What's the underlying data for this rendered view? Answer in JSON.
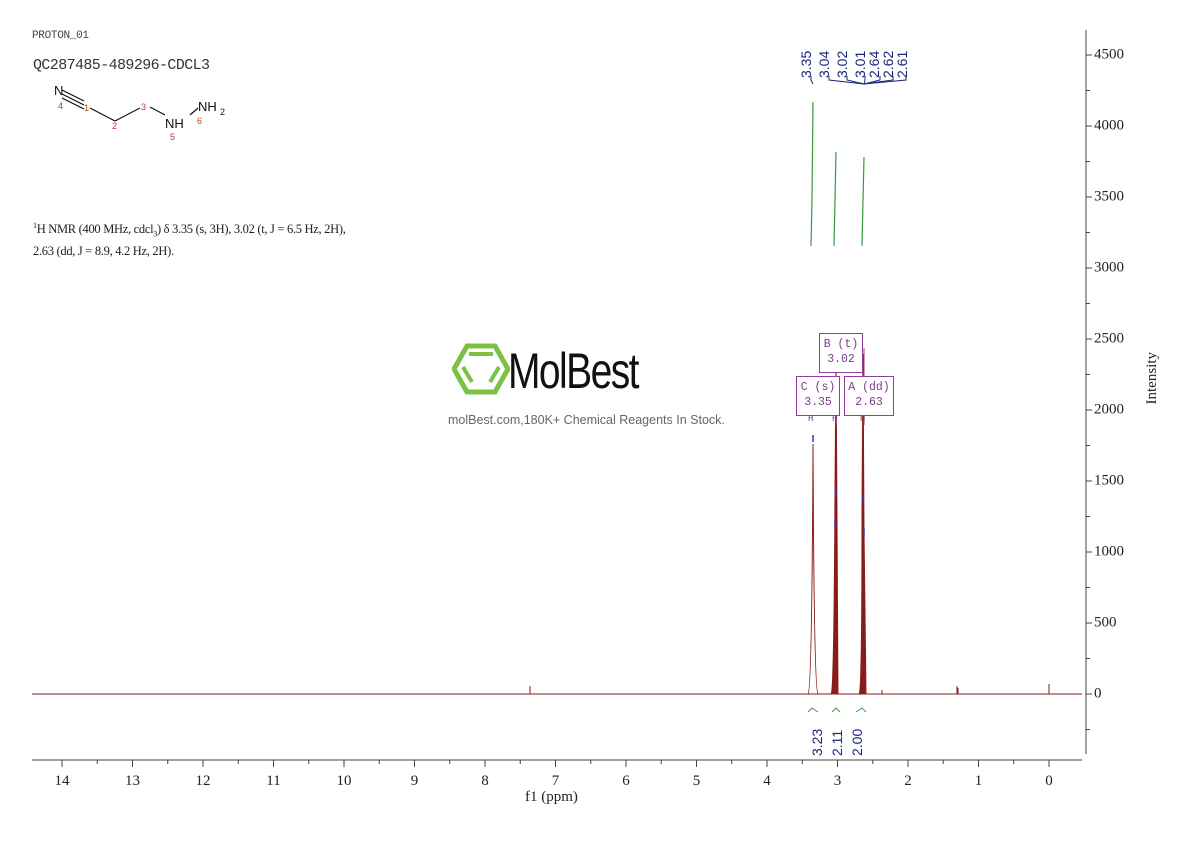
{
  "header": {
    "experiment": "PROTON_01",
    "sample_id": "QC287485-489296-CDCL3"
  },
  "structure": {
    "atoms": [
      {
        "label": "N",
        "index": "4"
      },
      {
        "label": "",
        "index": "1"
      },
      {
        "label": "",
        "index": "2"
      },
      {
        "label": "",
        "index": "3"
      },
      {
        "label": "NH",
        "index": "5"
      },
      {
        "label": "NH2",
        "index": "6"
      }
    ]
  },
  "nmr_description": {
    "line1_prefix": "1",
    "line1": "H NMR (400 MHz, cdcl",
    "line1_sub": "3",
    "line1_rest": ") δ 3.35 (s, 3H), 3.02 (t, J = 6.5 Hz, 2H),",
    "line2": "2.63 (dd, J = 8.9, 4.2 Hz, 2H)."
  },
  "watermark": {
    "brand": "MolBest",
    "tagline": "molBest.com,180K+ Chemical Reagents In Stock.",
    "logo_color": "#7cc242"
  },
  "colors": {
    "spectrum": "#8b1a1a",
    "integral_curve": "#3a9a3a",
    "peak_labels": "#1a237e",
    "multiplet_box": "#8e3f9a",
    "axis": "#444444"
  },
  "chart_data": {
    "type": "line",
    "title": "QC287485-489296-CDCL3",
    "subtitle": "PROTON_01",
    "xlabel": "f1 (ppm)",
    "ylabel": "Intensity",
    "xlim": [
      14.45,
      -0.45
    ],
    "ylim": [
      -450,
      4650
    ],
    "x_reversed": true,
    "y_axis_position": "right",
    "grid": false,
    "x_ticks": [
      "14",
      "13",
      "12",
      "11",
      "10",
      "9",
      "8",
      "7",
      "6",
      "5",
      "4",
      "3",
      "2",
      "1",
      "0"
    ],
    "y_ticks": [
      "0",
      "500",
      "1000",
      "1500",
      "2000",
      "2500",
      "3000",
      "3500",
      "4000",
      "4500"
    ],
    "peaks": [
      {
        "ppm": 3.35,
        "intensity": 1770
      },
      {
        "ppm": 3.04,
        "intensity": 1430
      },
      {
        "ppm": 3.02,
        "intensity": 2300
      },
      {
        "ppm": 3.01,
        "intensity": 1200
      },
      {
        "ppm": 2.64,
        "intensity": 1380
      },
      {
        "ppm": 2.62,
        "intensity": 2330
      },
      {
        "ppm": 2.61,
        "intensity": 1160
      },
      {
        "ppm": 7.26,
        "intensity": 60
      },
      {
        "ppm": 2.4,
        "intensity": 25
      },
      {
        "ppm": 1.33,
        "intensity": 60
      },
      {
        "ppm": 0.0,
        "intensity": 60
      }
    ],
    "peak_labels": [
      "3.35",
      "3.04",
      "3.02",
      "3.01",
      "2.64",
      "2.62",
      "2.61"
    ],
    "multiplets": [
      {
        "id": "B",
        "type": "(t)",
        "shift": "3.02"
      },
      {
        "id": "C",
        "type": "(s)",
        "shift": "3.35"
      },
      {
        "id": "A",
        "type": "(dd)",
        "shift": "2.63"
      }
    ],
    "integrals": [
      {
        "range": [
          3.4,
          3.3
        ],
        "value": "3.23"
      },
      {
        "range": [
          3.07,
          2.98
        ],
        "value": "2.11"
      },
      {
        "range": [
          2.68,
          2.58
        ],
        "value": "2.00"
      }
    ]
  }
}
